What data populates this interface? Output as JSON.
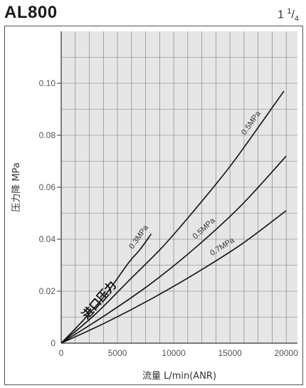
{
  "header": {
    "model": "AL800",
    "size_whole": "1",
    "size_num": "1",
    "size_den": "4"
  },
  "chart_data": {
    "type": "line",
    "xlabel_prefix": "流量",
    "xlabel_unit": "L/min(ANR)",
    "ylabel_prefix": "压力降",
    "ylabel_unit": "MPa",
    "xlim": [
      0,
      21000
    ],
    "ylim": [
      0,
      0.12
    ],
    "x_ticks": [
      0,
      5000,
      10000,
      15000,
      20000
    ],
    "x_tick_labels": [
      "0",
      "5000",
      "10000",
      "15000",
      "20000"
    ],
    "y_ticks": [
      0,
      0.02,
      0.04,
      0.06,
      0.08,
      0.1
    ],
    "y_tick_labels": [
      "0",
      "0.02",
      "0.04",
      "0.06",
      "0.08",
      "0.10"
    ],
    "inlet_label": "进口压力",
    "grid": true,
    "series": [
      {
        "name": "0.3MPa",
        "x": [
          0,
          2000,
          4000,
          6000,
          7000,
          8000
        ],
        "y": [
          0,
          0.009,
          0.019,
          0.031,
          0.036,
          0.042
        ]
      },
      {
        "name": "0.5MPa",
        "x": [
          0,
          3000,
          6000,
          9000,
          12000,
          15000,
          18000,
          19800
        ],
        "y": [
          0,
          0.011,
          0.024,
          0.037,
          0.052,
          0.068,
          0.086,
          0.097
        ]
      },
      {
        "name": "0.5MPa",
        "x": [
          0,
          4000,
          8000,
          12000,
          16000,
          20000
        ],
        "y": [
          0,
          0.011,
          0.023,
          0.037,
          0.053,
          0.072
        ]
      },
      {
        "name": "0.7MPa",
        "x": [
          0,
          4000,
          8000,
          12000,
          16000,
          20000
        ],
        "y": [
          0,
          0.008,
          0.017,
          0.027,
          0.038,
          0.051
        ]
      }
    ],
    "colors": {
      "grid_bg": "#e6e6e6",
      "grid_line": "#777777",
      "curve": "#111111",
      "axis": "#333333"
    }
  }
}
